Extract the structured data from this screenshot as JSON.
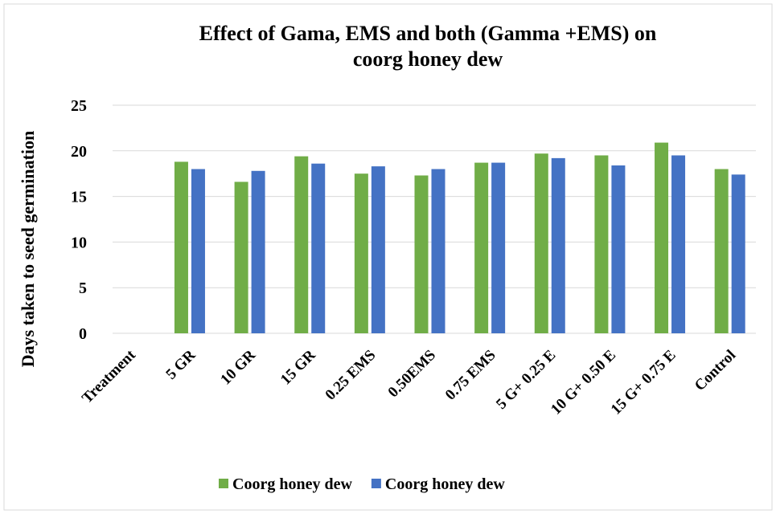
{
  "chart_data": {
    "type": "bar",
    "title": "Effect of Gama, EMS and both (Gamma +EMS) on coorg honey dew",
    "y_label": "Days taken to seed germination",
    "categories": [
      "Treatment",
      "5 GR",
      "10 GR",
      "15 GR",
      "0.25 EMS",
      "0.50EMS",
      "0.75 EMS",
      "5 G+ 0.25 E",
      "10 G+ 0.50 E",
      "15 G+ 0.75 E",
      "Control"
    ],
    "series": [
      {
        "name": "Coorg honey dew",
        "color": "#70ad47",
        "values": [
          null,
          18.8,
          16.6,
          19.4,
          17.5,
          17.3,
          18.7,
          19.7,
          19.5,
          20.9,
          18.0
        ]
      },
      {
        "name": "Coorg honey dew",
        "color": "#4472c4",
        "values": [
          null,
          18.0,
          17.8,
          18.6,
          18.3,
          18.0,
          18.7,
          19.2,
          18.4,
          19.5,
          17.4
        ]
      }
    ],
    "ylim": [
      0,
      25
    ],
    "yticks": [
      0,
      5,
      10,
      15,
      20,
      25
    ],
    "grid": true,
    "legend": "bottom"
  }
}
